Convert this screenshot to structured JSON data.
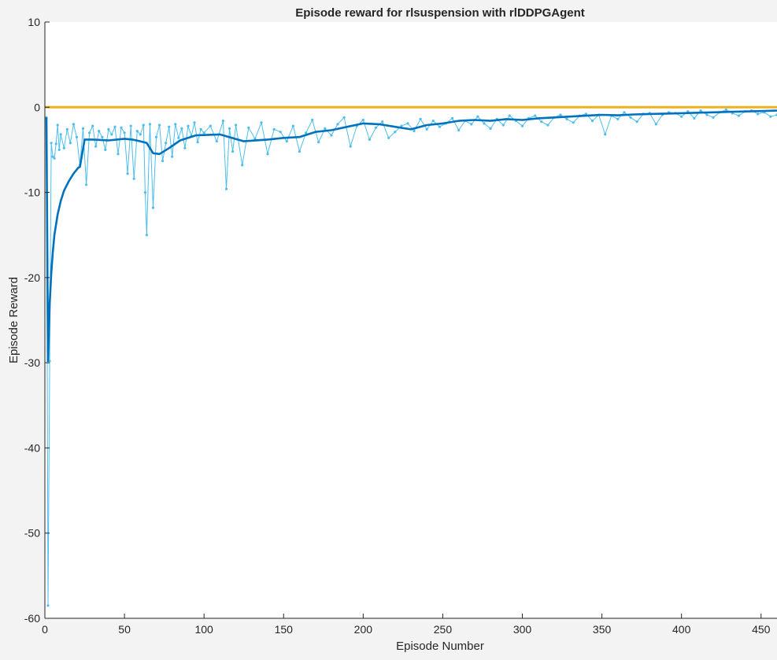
{
  "chart_data": {
    "type": "line",
    "title": "Episode reward for rlsuspension with rlDDPGAgent",
    "xlabel": "Episode Number",
    "ylabel": "Episode Reward",
    "xlim": [
      0,
      460
    ],
    "ylim": [
      -60,
      10
    ],
    "x_ticks": [
      0,
      50,
      100,
      150,
      200,
      250,
      300,
      350,
      400,
      450
    ],
    "y_ticks": [
      -60,
      -50,
      -40,
      -30,
      -20,
      -10,
      0,
      10
    ],
    "grid": false,
    "legend": "none",
    "colors": {
      "episode_reward": "#4dbeee",
      "average_reward": "#0072bd",
      "episode_q0": "#edb120",
      "axes": "#262626",
      "plot_bg": "#ffffff",
      "figure_bg": "#f3f3f3"
    },
    "series": [
      {
        "role": "episode_reward",
        "x": [
          1,
          2,
          3,
          4,
          5,
          6,
          7,
          8,
          9,
          10,
          12,
          14,
          16,
          18,
          20,
          22,
          24,
          26,
          28,
          30,
          32,
          34,
          36,
          38,
          40,
          42,
          44,
          46,
          48,
          50,
          52,
          54,
          56,
          58,
          60,
          62,
          63,
          64,
          66,
          68,
          70,
          72,
          74,
          76,
          78,
          80,
          82,
          84,
          86,
          88,
          90,
          92,
          94,
          96,
          98,
          100,
          104,
          108,
          112,
          114,
          116,
          118,
          120,
          124,
          128,
          132,
          136,
          140,
          144,
          148,
          152,
          156,
          160,
          164,
          168,
          172,
          176,
          180,
          184,
          188,
          192,
          196,
          200,
          204,
          208,
          212,
          216,
          220,
          224,
          228,
          232,
          236,
          240,
          244,
          248,
          252,
          256,
          260,
          264,
          268,
          272,
          276,
          280,
          284,
          288,
          292,
          296,
          300,
          304,
          308,
          312,
          316,
          320,
          324,
          328,
          332,
          336,
          340,
          344,
          348,
          352,
          356,
          360,
          364,
          368,
          372,
          376,
          380,
          384,
          388,
          392,
          396,
          400,
          404,
          408,
          412,
          416,
          420,
          424,
          428,
          432,
          436,
          440,
          444,
          448,
          452,
          456,
          460
        ],
        "y": [
          -1.2,
          -58.5,
          -29.8,
          -4.2,
          -5.8,
          -6.0,
          -4.3,
          -2.1,
          -5.0,
          -3.2,
          -4.8,
          -2.6,
          -4.2,
          -2.0,
          -3.5,
          -6.8,
          -2.5,
          -9.1,
          -3.0,
          -2.2,
          -4.6,
          -2.8,
          -3.5,
          -5.0,
          -2.6,
          -3.2,
          -2.3,
          -5.5,
          -2.4,
          -3.0,
          -7.8,
          -2.2,
          -8.4,
          -2.8,
          -3.2,
          -2.1,
          -10.0,
          -15.0,
          -2.0,
          -11.8,
          -3.5,
          -2.1,
          -6.3,
          -4.2,
          -2.3,
          -5.8,
          -2.0,
          -3.6,
          -2.5,
          -4.8,
          -2.2,
          -3.4,
          -1.8,
          -4.1,
          -2.6,
          -3.0,
          -2.2,
          -4.0,
          -1.6,
          -9.6,
          -2.5,
          -5.2,
          -2.1,
          -6.8,
          -2.4,
          -3.7,
          -1.8,
          -5.5,
          -2.6,
          -2.9,
          -4.0,
          -2.2,
          -5.2,
          -3.0,
          -1.5,
          -4.1,
          -2.5,
          -3.3,
          -2.0,
          -1.2,
          -4.6,
          -2.2,
          -1.5,
          -3.8,
          -2.4,
          -1.7,
          -3.6,
          -2.9,
          -2.2,
          -1.9,
          -2.8,
          -1.4,
          -2.6,
          -1.6,
          -2.3,
          -1.9,
          -1.3,
          -2.7,
          -1.6,
          -2.0,
          -1.1,
          -1.9,
          -2.5,
          -1.4,
          -2.1,
          -1.0,
          -1.6,
          -2.2,
          -1.3,
          -1.0,
          -1.7,
          -2.1,
          -1.2,
          -0.9,
          -1.4,
          -1.8,
          -1.0,
          -0.8,
          -1.6,
          -0.9,
          -3.2,
          -1.0,
          -1.4,
          -0.6,
          -1.2,
          -1.7,
          -0.8,
          -0.7,
          -2.0,
          -0.9,
          -0.6,
          -0.7,
          -1.1,
          -0.5,
          -1.3,
          -0.4,
          -0.9,
          -1.2,
          -0.6,
          -0.3,
          -0.7,
          -1.0,
          -0.5,
          -0.4,
          -0.8,
          -0.6,
          -1.1,
          -0.9
        ]
      },
      {
        "role": "average_reward",
        "x": [
          1,
          2,
          3,
          4,
          5,
          6,
          8,
          10,
          12,
          15,
          18,
          21,
          22,
          25,
          30,
          40,
          50,
          55,
          60,
          64,
          68,
          72,
          78,
          85,
          95,
          110,
          125,
          140,
          150,
          160,
          170,
          180,
          190,
          200,
          210,
          220,
          230,
          240,
          250,
          260,
          270,
          280,
          290,
          300,
          310,
          320,
          330,
          340,
          350,
          360,
          370,
          380,
          390,
          400,
          410,
          420,
          430,
          440,
          450,
          460
        ],
        "y": [
          -1.2,
          -29.8,
          -23.1,
          -19.5,
          -17.0,
          -15.0,
          -12.6,
          -11.0,
          -9.8,
          -8.7,
          -7.8,
          -7.1,
          -7.0,
          -3.8,
          -3.8,
          -3.9,
          -3.7,
          -3.8,
          -4.0,
          -4.2,
          -5.4,
          -5.5,
          -4.8,
          -3.9,
          -3.3,
          -3.2,
          -4.0,
          -3.8,
          -3.6,
          -3.5,
          -2.9,
          -2.7,
          -2.3,
          -1.9,
          -2.0,
          -2.3,
          -2.6,
          -2.1,
          -1.9,
          -1.6,
          -1.5,
          -1.6,
          -1.4,
          -1.5,
          -1.3,
          -1.2,
          -1.1,
          -1.0,
          -0.9,
          -0.95,
          -0.85,
          -0.8,
          -0.75,
          -0.7,
          -0.65,
          -0.6,
          -0.55,
          -0.5,
          -0.45,
          -0.4
        ]
      },
      {
        "role": "episode_q0",
        "x": [
          0,
          460
        ],
        "y": [
          0,
          0
        ]
      }
    ]
  }
}
